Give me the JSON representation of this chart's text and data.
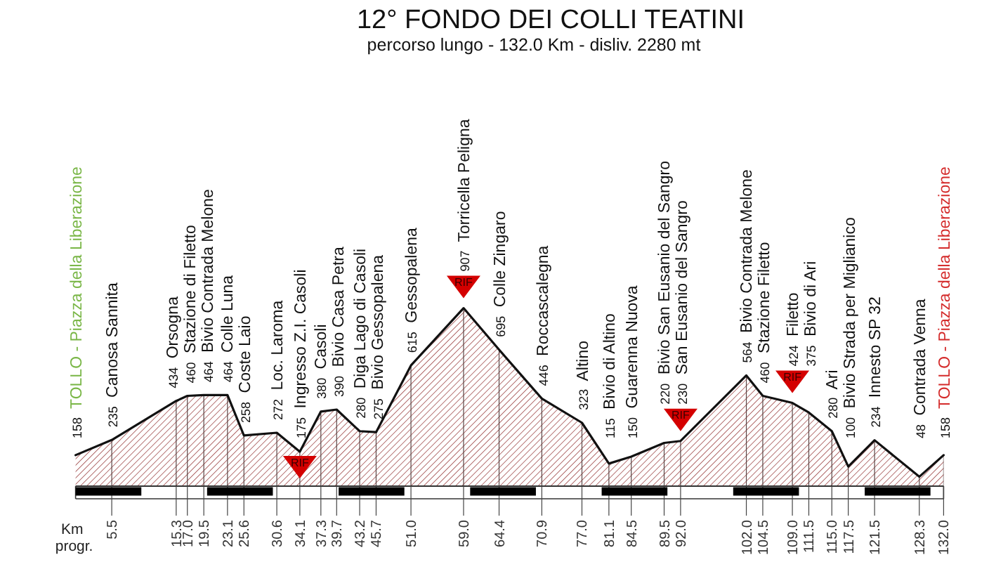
{
  "chart_data": {
    "type": "area",
    "title": "12° FONDO DEI COLLI TEATINI",
    "subtitle": "percorso lungo - 132.0 Km - disliv. 2280 mt",
    "xlabel": "Km progr.",
    "x": [
      0,
      5.5,
      15.3,
      17.0,
      19.5,
      23.1,
      25.6,
      30.6,
      34.1,
      37.3,
      39.7,
      43.2,
      45.7,
      51.0,
      59.0,
      64.4,
      70.9,
      77.0,
      81.1,
      84.5,
      89.5,
      92.0,
      102.0,
      104.5,
      109.0,
      111.5,
      115.0,
      117.5,
      121.5,
      128.3,
      132.0
    ],
    "values": [
      158,
      235,
      434,
      460,
      464,
      464,
      258,
      272,
      175,
      380,
      390,
      280,
      275,
      615,
      907,
      695,
      446,
      323,
      115,
      150,
      220,
      230,
      564,
      460,
      424,
      375,
      280,
      100,
      234,
      48,
      158
    ],
    "value_labels": [
      "158 TOLLO - Piazza della Liberazione",
      "235 Canosa Sannita",
      "434 Orsogna",
      "460 Stazione di Filetto",
      "464 Bivio Contrada Melone",
      "464 Colle Luna",
      "258 Coste Laio",
      "272 Loc. Laroma",
      "175 Ingresso Z.I. Casoli",
      "380 Casoli",
      "390 Bivio Casa Petra",
      "280 Diga Lago di Casoli",
      "275 Bivio Gessopalena",
      "615 Gessopalena",
      "907 Torricella Peligna",
      "695 Colle Zingaro",
      "446 Roccascalegna",
      "323 Altino",
      "115 Bivio di Altino",
      "150 Guarenna Nuova",
      "220 Bivio San Eusanio del Sangro",
      "230 San Eusanio del Sangro",
      "564 Bivio Contrada Melone",
      "460 Stazione Filetto",
      "424 Filetto",
      "375 Bivio di Ari",
      "280 Ari",
      "100 Bivio Strada per Miglianico",
      "234 Innesto SP 32",
      "48 Contrada Venna",
      "158 TOLLO - Piazza della Liberazione"
    ],
    "color": "#a34f4f",
    "xlim": [
      0,
      132
    ],
    "xticks": [
      5.5,
      15.3,
      {
        "value": 17,
        "label": "17.0"
      },
      19.5,
      23.1,
      25.6,
      30.6,
      34.1,
      37.3,
      39.7,
      43.2,
      45.7,
      {
        "value": 51,
        "label": "51.0"
      },
      {
        "value": 59,
        "label": "59.0"
      },
      64.4,
      70.9,
      {
        "value": 77,
        "label": "77.0"
      },
      81.1,
      84.5,
      89.5,
      {
        "value": 92,
        "label": "92.0"
      },
      {
        "value": 102,
        "label": "102.0"
      },
      104.5,
      {
        "value": 109,
        "label": "109.0"
      },
      111.5,
      {
        "value": 115,
        "label": "115.0"
      },
      117.5,
      121.5,
      128.3,
      {
        "value": 132,
        "label": "132.0"
      }
    ],
    "ylim": [
      0,
      2000
    ],
    "tick_labels": "x",
    "grid": "x",
    "annotations": [
      {
        "text": "RIF",
        "x": 34.1,
        "y": 175
      },
      {
        "text": "RIF",
        "x": 59.0,
        "y": 907
      },
      {
        "text": "RIF",
        "x": 92.0,
        "y": 230
      },
      {
        "text": "RIF",
        "x": 109.0,
        "y": 424
      }
    ]
  }
}
